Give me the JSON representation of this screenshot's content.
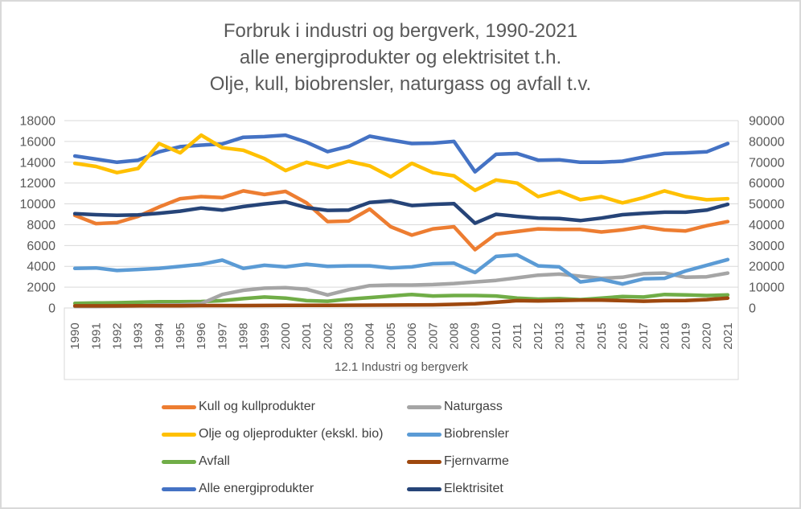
{
  "title": {
    "lines": [
      "Forbruk i industri og bergverk, 1990-2021",
      "alle energiprodukter og elektrisitet t.h.",
      "Olje, kull, biobrensler, naturgass og avfall t.v."
    ]
  },
  "colors": {
    "grid": "#D9D9D9",
    "axis_text": "#595959",
    "legend_text": "#404040",
    "frame_border": "#D9D9D9"
  },
  "chart_data": {
    "type": "line",
    "x_axis_label": "12.1 Industri og bergverk",
    "x": [
      1990,
      1991,
      1992,
      1993,
      1994,
      1995,
      1996,
      1997,
      1998,
      1999,
      2000,
      2001,
      2002,
      2003,
      2004,
      2005,
      2006,
      2007,
      2008,
      2009,
      2010,
      2011,
      2012,
      2013,
      2014,
      2015,
      2016,
      2017,
      2018,
      2019,
      2020,
      2021
    ],
    "axes": {
      "left": {
        "min": 0,
        "max": 18000,
        "step": 2000
      },
      "right": {
        "min": 0,
        "max": 90000,
        "step": 10000
      }
    },
    "grid": true,
    "legend_position": "bottom",
    "legend_order": [
      0,
      4,
      2,
      5,
      3,
      6,
      1,
      7
    ],
    "series": [
      {
        "name": "Kull og kullprodukter",
        "color": "#ED7D31",
        "axis": "left",
        "values": [
          8900,
          8100,
          8200,
          8800,
          9700,
          10500,
          10700,
          10600,
          11250,
          10900,
          11200,
          10100,
          8300,
          8350,
          9500,
          7800,
          7000,
          7600,
          7800,
          5600,
          7100,
          7350,
          7600,
          7550,
          7550,
          7300,
          7500,
          7800,
          7500,
          7400,
          7900,
          8300
        ]
      },
      {
        "name": "Alle energiprodukter",
        "color": "#4472C4",
        "axis": "right",
        "values": [
          73000,
          71500,
          70000,
          71000,
          75000,
          77500,
          78200,
          78800,
          82000,
          82300,
          83000,
          79600,
          75100,
          77600,
          82500,
          80700,
          79000,
          79200,
          80000,
          65400,
          73800,
          74200,
          71000,
          71200,
          70000,
          70000,
          70500,
          72500,
          74200,
          74500,
          75000,
          79000
        ]
      },
      {
        "name": "Olje og oljeprodukter (ekskl. bio)",
        "color": "#FFC000",
        "axis": "left",
        "values": [
          13900,
          13600,
          13000,
          13400,
          15800,
          14900,
          16600,
          15400,
          15150,
          14350,
          13200,
          14000,
          13500,
          14100,
          13650,
          12600,
          13900,
          13000,
          12700,
          11300,
          12300,
          12000,
          10700,
          11200,
          10400,
          10700,
          10100,
          10600,
          11250,
          10700,
          10400,
          10500
        ]
      },
      {
        "name": "Avfall",
        "color": "#70AD47",
        "axis": "left",
        "values": [
          450,
          480,
          500,
          550,
          600,
          600,
          620,
          700,
          900,
          1050,
          950,
          700,
          650,
          850,
          1000,
          1150,
          1300,
          1150,
          1200,
          1200,
          1150,
          950,
          850,
          900,
          800,
          950,
          1100,
          1050,
          1300,
          1250,
          1200,
          1250
        ]
      },
      {
        "name": "Naturgass",
        "color": "#A5A5A5",
        "axis": "left",
        "values": [
          150,
          150,
          180,
          200,
          280,
          300,
          420,
          1300,
          1700,
          1900,
          1950,
          1800,
          1250,
          1750,
          2150,
          2200,
          2200,
          2250,
          2350,
          2500,
          2650,
          2900,
          3150,
          3250,
          3050,
          2850,
          2950,
          3300,
          3350,
          2950,
          3000,
          3350
        ]
      },
      {
        "name": "Biobrensler",
        "color": "#5B9BD5",
        "axis": "left",
        "values": [
          3800,
          3850,
          3600,
          3700,
          3800,
          4000,
          4200,
          4600,
          3800,
          4100,
          3950,
          4200,
          4000,
          4050,
          4050,
          3850,
          3950,
          4250,
          4300,
          3400,
          4950,
          5100,
          4050,
          3950,
          2500,
          2750,
          2300,
          2800,
          2850,
          3550,
          4100,
          4650
        ]
      },
      {
        "name": "Fjernvarme",
        "color": "#9E480E",
        "axis": "left",
        "values": [
          200,
          200,
          200,
          210,
          220,
          220,
          230,
          230,
          230,
          240,
          250,
          250,
          250,
          260,
          270,
          280,
          290,
          300,
          350,
          400,
          550,
          700,
          680,
          720,
          760,
          750,
          700,
          650,
          700,
          720,
          800,
          950
        ]
      },
      {
        "name": "Elektrisitet",
        "color": "#264478",
        "axis": "right",
        "values": [
          45300,
          44800,
          44500,
          44700,
          45500,
          46500,
          48000,
          47000,
          48700,
          50000,
          51000,
          48200,
          46900,
          47000,
          50700,
          51500,
          49200,
          49800,
          50100,
          40700,
          45000,
          44000,
          43200,
          43000,
          42000,
          43200,
          44800,
          45500,
          46000,
          46000,
          47000,
          49800
        ]
      }
    ]
  }
}
